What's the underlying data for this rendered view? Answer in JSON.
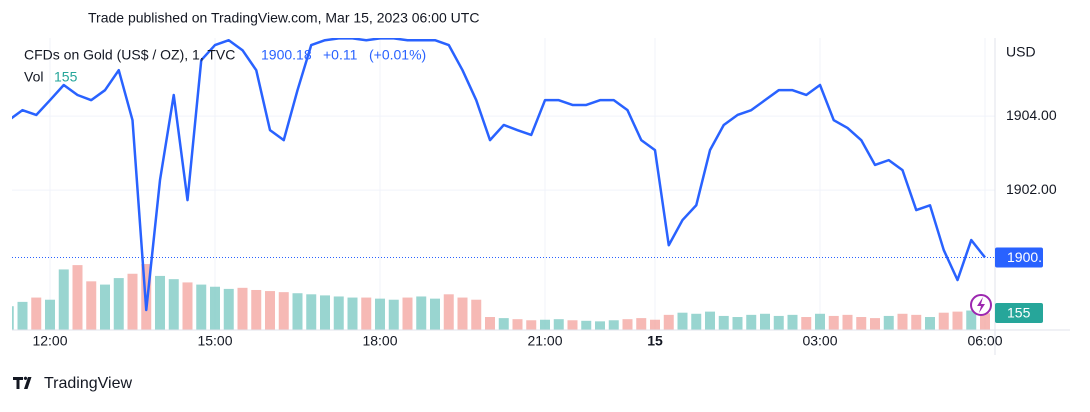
{
  "chart_data": {
    "type": "line",
    "title": "Trade published on TradingView.com, Mar 15, 2023 06:00 UTC",
    "brand": "TradingView",
    "currency": "USD",
    "change": {
      "value": 0.11,
      "label": "+0.11"
    },
    "change_percent": {
      "value": 0.01,
      "label": "(+0.01%)"
    },
    "categories": [
      null,
      null,
      null,
      "12:00",
      null,
      null,
      null,
      null,
      null,
      null,
      null,
      null,
      null,
      null,
      null,
      "15:00",
      null,
      null,
      null,
      null,
      null,
      null,
      null,
      null,
      null,
      null,
      null,
      "18:00",
      null,
      null,
      null,
      null,
      null,
      null,
      null,
      null,
      null,
      null,
      null,
      "21:00",
      null,
      null,
      null,
      null,
      null,
      null,
      null,
      "15",
      null,
      null,
      null,
      null,
      null,
      null,
      null,
      null,
      null,
      null,
      null,
      "03:00",
      null,
      null,
      null,
      null,
      null,
      null,
      null,
      null,
      null,
      null,
      null,
      "06:00"
    ],
    "series": [
      {
        "name": "CFDs on Gold (US$ / OZ), 1, TVC",
        "color": "#2962ff",
        "values": [
          1903.89,
          1904.16,
          1904.03,
          1904.43,
          1904.84,
          1904.57,
          1904.43,
          1904.7,
          1905.24,
          1903.89,
          1898.76,
          1902.27,
          1904.57,
          1901.73,
          1905.51,
          1905.92,
          1906.05,
          1905.78,
          1905.24,
          1903.62,
          1903.35,
          1904.7,
          1905.92,
          1906.05,
          1906.1,
          1906.1,
          1906.05,
          1906.1,
          1906.1,
          1906.05,
          1906.05,
          1906.05,
          1905.92,
          1905.24,
          1904.43,
          1903.35,
          1903.76,
          1903.62,
          1903.49,
          1904.43,
          1904.43,
          1904.3,
          1904.3,
          1904.43,
          1904.43,
          1904.16,
          1903.35,
          1903.08,
          1900.51,
          1901.19,
          1901.59,
          1903.08,
          1903.76,
          1904.03,
          1904.16,
          1904.43,
          1904.7,
          1904.7,
          1904.57,
          1904.84,
          1903.89,
          1903.68,
          1903.35,
          1902.68,
          1902.81,
          1902.54,
          1901.46,
          1901.59,
          1900.38,
          1899.57,
          1900.65,
          1900.18
        ]
      },
      {
        "name": "Vol",
        "axis": "y2",
        "up_color": "#80cbc4",
        "down_color": "#f4a7a3",
        "label_color": "#26a69a",
        "values": [
          220,
          260,
          300,
          280,
          560,
          600,
          450,
          420,
          480,
          520,
          610,
          500,
          470,
          440,
          420,
          400,
          380,
          390,
          370,
          360,
          350,
          340,
          330,
          320,
          310,
          300,
          300,
          290,
          280,
          300,
          310,
          290,
          330,
          300,
          280,
          120,
          110,
          100,
          90,
          95,
          100,
          90,
          85,
          80,
          90,
          100,
          110,
          95,
          140,
          160,
          150,
          170,
          130,
          120,
          140,
          150,
          130,
          140,
          120,
          150,
          130,
          140,
          120,
          110,
          130,
          150,
          140,
          120,
          160,
          170,
          180,
          155
        ]
      }
    ],
    "ylim": [
      1898.22,
      1906.11
    ],
    "yticks": [
      {
        "value": 1902,
        "label": "1902.00"
      },
      {
        "value": 1904,
        "label": "1904.00"
      }
    ],
    "y2lim": [
      0,
      2700
    ],
    "grid": true
  }
}
